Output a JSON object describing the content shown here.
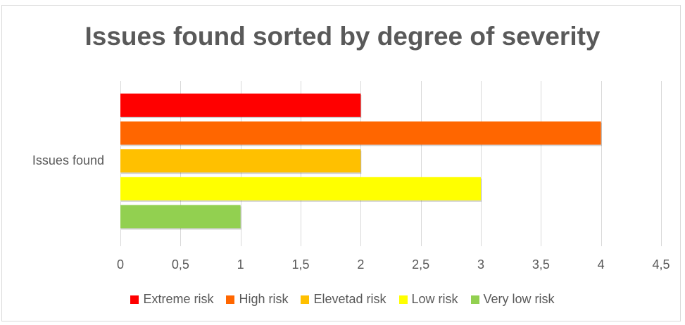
{
  "chart_data": {
    "type": "bar",
    "orientation": "horizontal",
    "title": "Issues found sorted by degree of severity",
    "categories": [
      "Issues found"
    ],
    "series": [
      {
        "name": "Extreme risk",
        "values": [
          2
        ],
        "color": "#ff0000"
      },
      {
        "name": "High risk",
        "values": [
          4
        ],
        "color": "#ff6600"
      },
      {
        "name": "Elevetad risk",
        "values": [
          2
        ],
        "color": "#ffc000"
      },
      {
        "name": "Low risk",
        "values": [
          3
        ],
        "color": "#ffff00"
      },
      {
        "name": "Very low risk",
        "values": [
          1
        ],
        "color": "#92d050"
      }
    ],
    "x_ticks": [
      "0",
      "0,5",
      "1",
      "1,5",
      "2",
      "2,5",
      "3",
      "3,5",
      "4",
      "4,5"
    ],
    "xlim": [
      0,
      4.5
    ],
    "grid": "vertical",
    "legend": "bottom",
    "xlabel": "",
    "ylabel": ""
  }
}
